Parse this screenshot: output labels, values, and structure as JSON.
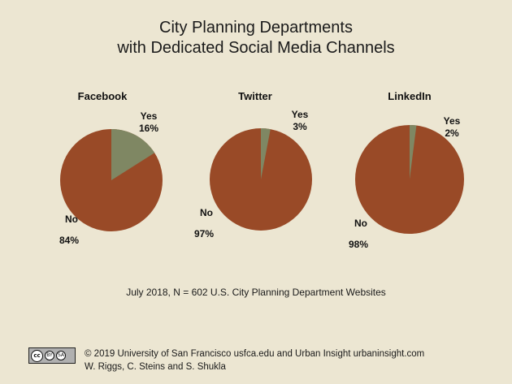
{
  "title_lines": [
    "City Planning Departments",
    "with Dedicated Social Media Channels"
  ],
  "colors": {
    "no": "#994a27",
    "yes": "#7f8763",
    "background": "#ece6d2"
  },
  "chart_data": [
    {
      "type": "pie",
      "title": "Facebook",
      "slices": [
        {
          "label": "Yes",
          "value": 16,
          "display": "16%"
        },
        {
          "label": "No",
          "value": 84,
          "display": "84%"
        }
      ]
    },
    {
      "type": "pie",
      "title": "Twitter",
      "slices": [
        {
          "label": "Yes",
          "value": 3,
          "display": "3%"
        },
        {
          "label": "No",
          "value": 97,
          "display": "97%"
        }
      ]
    },
    {
      "type": "pie",
      "title": "LinkedIn",
      "slices": [
        {
          "label": "Yes",
          "value": 2,
          "display": "2%"
        },
        {
          "label": "No",
          "value": 98,
          "display": "98%"
        }
      ]
    }
  ],
  "note": "July 2018, N = 602 U.S. City Planning Department Websites",
  "footer": {
    "line1": "© 2019 University of San Francisco usfca.edu and Urban Insight urbaninsight.com",
    "line2": "W. Riggs, C. Steins and S. Shukla"
  },
  "badge": {
    "cc": "cc",
    "by": "BY",
    "sa": "SA"
  }
}
